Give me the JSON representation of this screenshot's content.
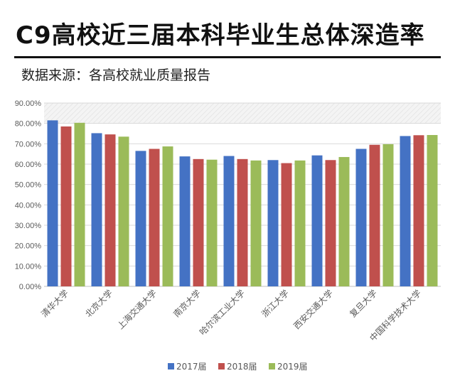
{
  "header": {
    "title": "C9高校近三届本科毕业生总体深造率",
    "subtitle": "数据来源：各高校就业质量报告"
  },
  "chart_data": {
    "type": "bar",
    "categories": [
      "清华大学",
      "北京大学",
      "上海交通大学",
      "南京大学",
      "哈尔滨工业大学",
      "浙江大学",
      "西安交通大学",
      "复旦大学",
      "中国科学技术大学"
    ],
    "series": [
      {
        "name": "2017届",
        "color": "#4472c4",
        "values": [
          81.5,
          75.2,
          66.5,
          63.8,
          64.0,
          62.0,
          64.3,
          67.5,
          73.8
        ]
      },
      {
        "name": "2018届",
        "color": "#c0504d",
        "values": [
          78.5,
          74.6,
          67.5,
          62.5,
          62.5,
          60.5,
          62.0,
          69.5,
          74.2
        ]
      },
      {
        "name": "2019届",
        "color": "#9bbb59",
        "values": [
          80.3,
          73.5,
          68.7,
          62.2,
          61.8,
          61.8,
          63.5,
          69.8,
          74.3
        ]
      }
    ],
    "yticks": [
      "0.00%",
      "10.00%",
      "20.00%",
      "30.00%",
      "40.00%",
      "50.00%",
      "60.00%",
      "70.00%",
      "80.00%",
      "90.00%"
    ],
    "ylim": [
      0,
      90
    ],
    "legend_position": "bottom",
    "grid": true
  }
}
